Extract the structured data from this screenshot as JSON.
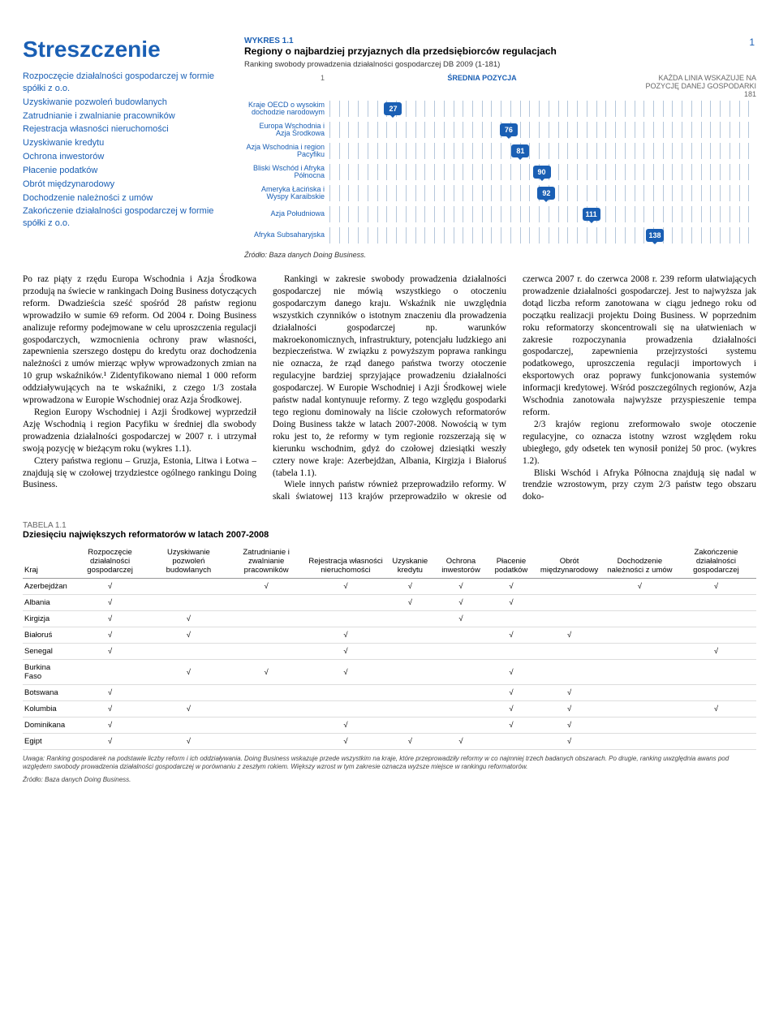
{
  "page_number": "1",
  "title": "Streszczenie",
  "subtitle_lines": [
    "Rozpoczęcie działalności gospodarczej w formie spółki z o.o.",
    "Uzyskiwanie pozwoleń budowlanych",
    "Zatrudnianie i zwalnianie pracowników",
    "Rejestracja własności nieruchomości",
    "Uzyskiwanie kredytu",
    "Ochrona inwestorów",
    "Płacenie podatków",
    "Obrót międzynarodowy",
    "Dochodzenie należności z umów",
    "Zakończenie działalności gospodarczej w formie spółki z o.o."
  ],
  "figure": {
    "label": "WYKRES 1.1",
    "title": "Regiony o najbardziej przyjaznych dla przedsiębiorców regulacjach",
    "subtitle": "Ranking swobody prowadzenia działalności gospodarczej DB 2009 (1-181)",
    "axis_start": "1",
    "axis_center": "ŚREDNIA POZYCJA",
    "axis_end_note": "KAŻDA LINIA WSKAZUJE NA POZYCJĘ DANEJ GOSPODARKI",
    "axis_end": "181",
    "scale_max": 181,
    "bubble_bg": "#1a5fb4",
    "tick_color": "#b5c7db",
    "rows": [
      {
        "label": "Kraje OECD o wysokim dochodzie narodowym",
        "value": 27
      },
      {
        "label": "Europa Wschodnia i Azja Środkowa",
        "value": 76
      },
      {
        "label": "Azja Wschodnia i region Pacyfiku",
        "value": 81
      },
      {
        "label": "Bliski Wschód i Afryka Północna",
        "value": 90
      },
      {
        "label": "Ameryka Łacińska i Wyspy Karaibskie",
        "value": 92
      },
      {
        "label": "Azja Południowa",
        "value": 111
      },
      {
        "label": "Afryka Subsaharyjska",
        "value": 138
      }
    ],
    "source": "Źródło: Baza danych Doing Business."
  },
  "body": {
    "p1": "Po raz piąty z rzędu Europa Wschodnia i Azja Środkowa przodują na świecie w rankingach Doing Business dotyczących reform. Dwadzieścia sześć spośród 28 państw regionu wprowadziło w sumie 69 reform. Od 2004 r. Doing Business analizuje reformy podejmowane w celu uproszczenia regulacji gospodarczych, wzmocnienia ochrony praw własności, zapewnienia szerszego dostępu do kredytu oraz dochodzenia należności z umów mierząc wpływ wprowadzonych zmian na 10 grup wskaźników.¹ Zidentyfikowano niemal 1 000 reform oddziaływujących na te wskaźniki, z czego 1/3 została wprowadzona w Europie Wschodniej oraz Azja Środkowej.",
    "p2": "Region Europy Wschodniej i Azji Środkowej wyprzedził Azję Wschodnią i region Pacyfiku w średniej dla swobody prowadzenia działalności gospodarczej w 2007 r. i utrzymał swoją pozycję w bieżącym roku (wykres 1.1).",
    "p3": "Cztery państwa regionu – Gruzja, Estonia, Litwa i Łotwa – znajdują się w czołowej trzydziestce ogólnego rankingu Doing Business.",
    "p4": "Rankingi w zakresie swobody prowadzenia działalności gospodarczej nie mówią wszystkiego o otoczeniu gospodarczym danego kraju. Wskaźnik nie uwzględnia wszystkich czynników o istotnym znaczeniu dla prowadzenia działalności gospodarczej np. warunków makroekonomicznych, infrastruktury, potencjału ludzkiego ani bezpieczeństwa. W związku z powyższym poprawa rankingu nie oznacza, że rząd danego państwa tworzy otoczenie regulacyjne bardziej sprzyjające prowadzeniu działalności gospodarczej. W Europie Wschodniej i Azji Środkowej wiele państw nadal kontynuuje reformy. Z tego względu gospodarki tego regionu dominowały na liście czołowych reformatorów Doing Business także w latach 2007-2008. Nowością w tym roku jest to, że reformy w tym regionie rozszerzają się w kierunku wschodnim, gdyż do czołowej dziesiątki weszły cztery nowe kraje: Azerbejdżan, Albania, Kirgizja i Białoruś (tabela 1.1).",
    "p5": "Wiele innych państw również przeprowadziło reformy. W skali światowej 113 krajów przeprowadziło w okresie od czerwca 2007 r. do czerwca 2008 r. 239 reform ułatwiających prowadzenie działalności gospodarczej. Jest to najwyższa jak dotąd liczba reform zanotowana w ciągu jednego roku od początku realizacji projektu Doing Business. W poprzednim roku reformatorzy skoncentrowali się na ułatwieniach w zakresie rozpoczynania prowadzenia działalności gospodarczej, zapewnienia przejrzystości systemu podatkowego, uproszczenia regulacji importowych i eksportowych oraz poprawy funkcjonowania systemów informacji kredytowej. Wśród poszczególnych regionów, Azja Wschodnia zanotowała najwyższe przyspieszenie tempa reform.",
    "p6": "2/3 krajów regionu zreformowało swoje otoczenie regulacyjne, co oznacza istotny wzrost względem roku ubiegłego, gdy odsetek ten wynosił poniżej 50 proc. (wykres 1.2).",
    "p7": "Bliski Wschód i Afryka Północna znajdują się nadal w trendzie wzrostowym, przy czym 2/3 państw tego obszaru doko-"
  },
  "table": {
    "label": "TABELA 1.1",
    "title": "Dziesięciu największych reformatorów w latach 2007-2008",
    "headers": [
      "Kraj",
      "Rozpoczęcie działalności gospodarczej",
      "Uzyskiwanie pozwoleń budowlanych",
      "Zatrudnianie i zwalnianie pracowników",
      "Rejestracja własności nieruchomości",
      "Uzyskanie kredytu",
      "Ochrona inwestorów",
      "Płacenie podatków",
      "Obrót międzynarodowy",
      "Dochodzenie należności z umów",
      "Zakończenie działalności gospodarczej"
    ],
    "rows": [
      {
        "country": "Azerbejdżan",
        "checks": [
          1,
          0,
          1,
          1,
          1,
          1,
          1,
          0,
          1,
          1
        ]
      },
      {
        "country": "Albania",
        "checks": [
          1,
          0,
          0,
          0,
          1,
          1,
          1,
          0,
          0,
          0
        ]
      },
      {
        "country": "Kirgizja",
        "checks": [
          1,
          1,
          0,
          0,
          0,
          1,
          0,
          0,
          0,
          0
        ]
      },
      {
        "country": "Białoruś",
        "checks": [
          1,
          1,
          0,
          1,
          0,
          0,
          1,
          1,
          0,
          0
        ]
      },
      {
        "country": "Senegal",
        "checks": [
          1,
          0,
          0,
          1,
          0,
          0,
          0,
          0,
          0,
          1
        ]
      },
      {
        "country": "Burkina Faso",
        "checks": [
          0,
          1,
          1,
          1,
          0,
          0,
          1,
          0,
          0,
          0
        ]
      },
      {
        "country": "Botswana",
        "checks": [
          1,
          0,
          0,
          0,
          0,
          0,
          1,
          1,
          0,
          0
        ]
      },
      {
        "country": "Kolumbia",
        "checks": [
          1,
          1,
          0,
          0,
          0,
          0,
          1,
          1,
          0,
          1
        ]
      },
      {
        "country": "Dominikana",
        "checks": [
          1,
          0,
          0,
          1,
          0,
          0,
          1,
          1,
          0,
          0
        ]
      },
      {
        "country": "Egipt",
        "checks": [
          1,
          1,
          0,
          1,
          1,
          1,
          0,
          1,
          0,
          0
        ]
      }
    ],
    "check_glyph": "√",
    "footnote": "Uwaga: Ranking gospodarek na podstawie liczby reform i ich oddziaływania. Doing Business wskazuje przede wszystkim na kraje, które przeprowadziły reformy w co najmniej trzech badanych obszarach. Po drugie, ranking uwzględnia awans pod względem swobody prowadzenia działalności gospodarczej w porównaniu z zeszłym rokiem. Większy wzrost w tym zakresie oznacza wyższe miejsce w rankingu reformatorów.",
    "source": "Źródło: Baza danych Doing Business."
  }
}
